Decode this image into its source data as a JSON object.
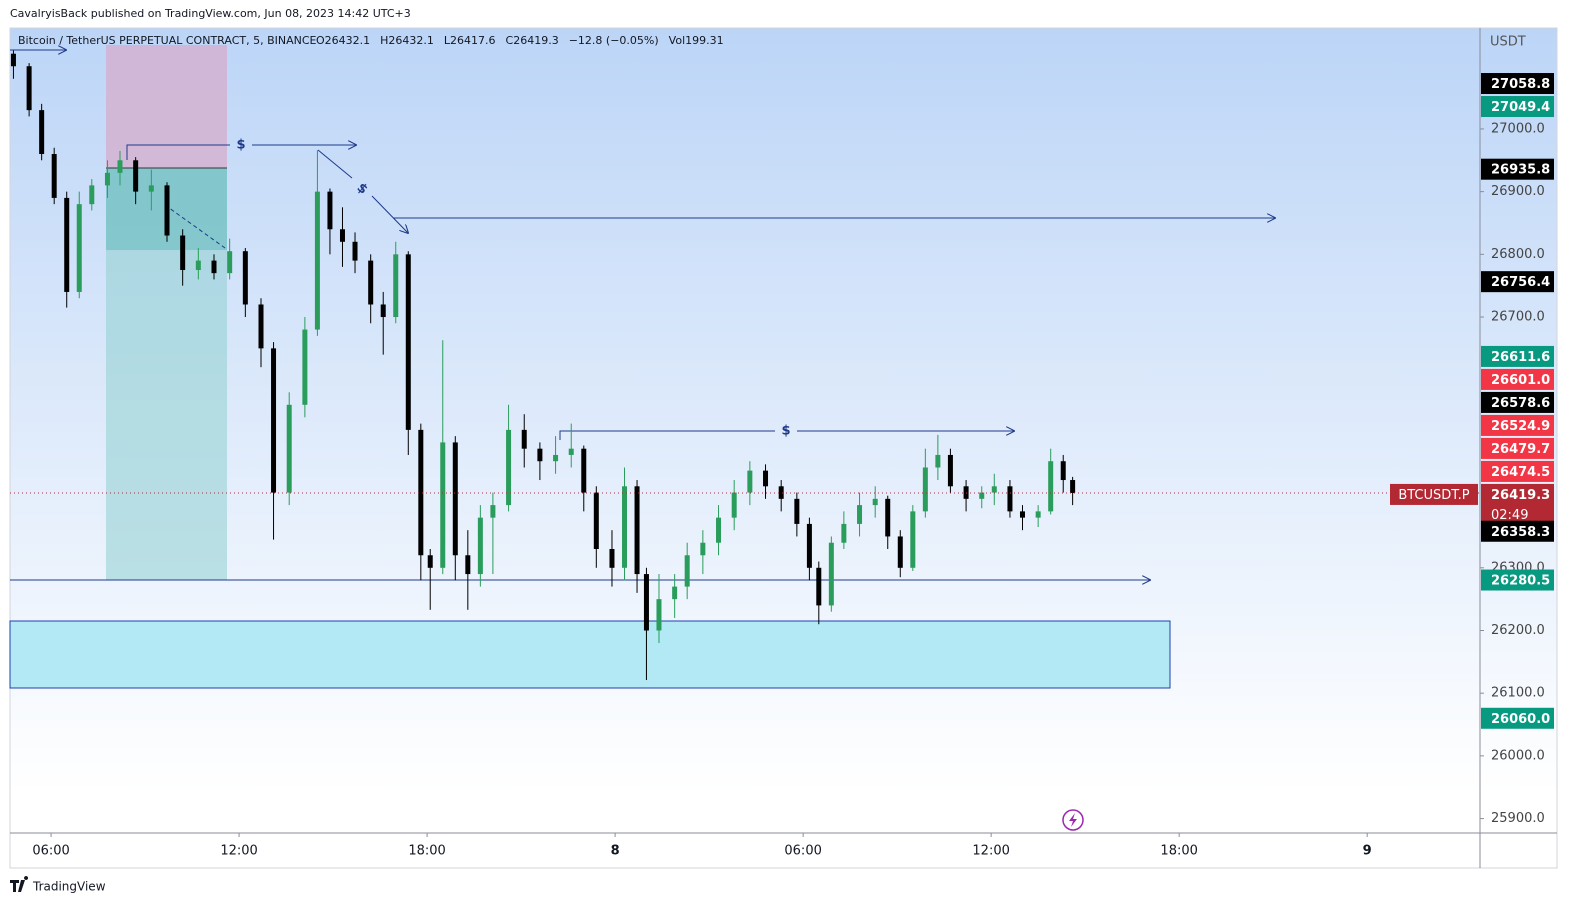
{
  "header": "CavalryisBack published on TradingView.com, Jun 08, 2023 14:42 UTC+3",
  "footer": "TradingView",
  "chart_data": {
    "type": "candlestick",
    "symbol": "Bitcoin / TetherUS PERPETUAL CONTRACT, 5, BINANCE",
    "ohlc": [
      "O26432.1",
      "H26432.1",
      "L26417.6",
      "C26419.3",
      "−12.8 (−0.05%)",
      "Vol199.31"
    ],
    "currency": "USDT",
    "ticker": "BTCUSDT.P",
    "countdown": "02:49",
    "annotations": [
      "$",
      "$",
      "$"
    ],
    "up_color": "#2a9d5c",
    "down_color": "#000000",
    "x": [
      4.8,
      5.3,
      5.7,
      6.1,
      6.5,
      6.9,
      7.3,
      7.8,
      8.2,
      8.7,
      9.2,
      9.7,
      10.2,
      10.7,
      11.2,
      11.7,
      12.2,
      12.7,
      13.1,
      13.6,
      14.1,
      14.5,
      14.9,
      15.3,
      15.7,
      16.2,
      16.6,
      17.0,
      17.4,
      17.8,
      18.1,
      18.5,
      18.9,
      19.3,
      19.7,
      20.1,
      20.6,
      21.1,
      21.6,
      22.1,
      22.6,
      23.0,
      23.4,
      23.9,
      24.3,
      24.7,
      25.0,
      25.4,
      25.9,
      26.3,
      26.8,
      27.3,
      27.8,
      28.3,
      28.8,
      29.3,
      29.8,
      30.2,
      30.5,
      30.9,
      31.3,
      31.8,
      32.3,
      32.7,
      33.1,
      33.5,
      33.9,
      34.3,
      34.7,
      35.2,
      35.7,
      36.1,
      36.6,
      37.0,
      37.5,
      37.9,
      38.3,
      38.6
    ],
    "open": [
      27120,
      27100,
      27030,
      26960,
      26890,
      26740,
      26880,
      26910,
      26930,
      26950,
      26900,
      26910,
      26830,
      26775,
      26790,
      26770,
      26805,
      26720,
      26650,
      26420,
      26560,
      26680,
      26900,
      26840,
      26820,
      26790,
      26720,
      26700,
      26800,
      26520,
      26320,
      26300,
      26500,
      26320,
      26290,
      26380,
      26400,
      26520,
      26490,
      26470,
      26480,
      26490,
      26420,
      26330,
      26300,
      26430,
      26290,
      26200,
      26250,
      26270,
      26320,
      26340,
      26380,
      26420,
      26455,
      26430,
      26410,
      26370,
      26300,
      26240,
      26340,
      26370,
      26400,
      26410,
      26350,
      26300,
      26390,
      26460,
      26480,
      26430,
      26410,
      26420,
      26430,
      26390,
      26380,
      26390,
      26470,
      26440
    ],
    "high": [
      27125,
      27105,
      27040,
      26970,
      26900,
      26900,
      26920,
      26950,
      26965,
      26955,
      26935,
      26915,
      26840,
      26810,
      26800,
      26825,
      26810,
      26730,
      26660,
      26580,
      26700,
      26966,
      26905,
      26875,
      26835,
      26800,
      26740,
      26820,
      26805,
      26530,
      26330,
      26663,
      26510,
      26360,
      26400,
      26420,
      26560,
      26545,
      26500,
      26510,
      26530,
      26495,
      26430,
      26360,
      26460,
      26440,
      26300,
      26290,
      26290,
      26340,
      26360,
      26400,
      26440,
      26470,
      26465,
      26440,
      26420,
      26380,
      26310,
      26350,
      26390,
      26420,
      26430,
      26415,
      26360,
      26400,
      26490,
      26512,
      26490,
      26440,
      26430,
      26450,
      26440,
      26400,
      26400,
      26490,
      26480,
      26445
    ],
    "low": [
      27080,
      27020,
      26950,
      26880,
      26715,
      26730,
      26870,
      26890,
      26910,
      26880,
      26870,
      26820,
      26750,
      26760,
      26760,
      26760,
      26700,
      26620,
      26345,
      26400,
      26540,
      26670,
      26800,
      26780,
      26770,
      26690,
      26640,
      26690,
      26480,
      26280,
      26233,
      26290,
      26280,
      26233,
      26270,
      26290,
      26390,
      26460,
      26440,
      26450,
      26460,
      26390,
      26300,
      26270,
      26280,
      26260,
      26121,
      26180,
      26220,
      26250,
      26290,
      26320,
      26360,
      26400,
      26410,
      26390,
      26350,
      26280,
      26210,
      26230,
      26330,
      26350,
      26380,
      26330,
      26285,
      26295,
      26380,
      26440,
      26420,
      26390,
      26395,
      26400,
      26380,
      26360,
      26365,
      26385,
      26420,
      26400
    ],
    "close": [
      27100,
      27030,
      26960,
      26890,
      26740,
      26880,
      26910,
      26930,
      26950,
      26900,
      26910,
      26830,
      26775,
      26790,
      26770,
      26805,
      26720,
      26650,
      26420,
      26560,
      26680,
      26900,
      26840,
      26820,
      26790,
      26720,
      26700,
      26800,
      26520,
      26320,
      26300,
      26500,
      26320,
      26290,
      26380,
      26400,
      26520,
      26490,
      26470,
      26480,
      26490,
      26420,
      26330,
      26300,
      26430,
      26290,
      26200,
      26250,
      26270,
      26320,
      26340,
      26380,
      26420,
      26455,
      26430,
      26410,
      26370,
      26300,
      26240,
      26340,
      26370,
      26400,
      26410,
      26350,
      26300,
      26390,
      26460,
      26480,
      26430,
      26410,
      26420,
      26430,
      26390,
      26380,
      26390,
      26470,
      26440,
      26419.3
    ],
    "xlim": [
      4.69,
      51.6
    ],
    "xticks": [
      {
        "value": 6,
        "label": "06:00"
      },
      {
        "value": 12,
        "label": "12:00"
      },
      {
        "value": 18,
        "label": "18:00"
      },
      {
        "value": 24,
        "label": "8"
      },
      {
        "value": 30,
        "label": "06:00"
      },
      {
        "value": 36,
        "label": "12:00"
      },
      {
        "value": 42,
        "label": "18:00"
      },
      {
        "value": 48,
        "label": "9"
      }
    ],
    "ylim": [
      25877,
      27161
    ],
    "yticks": [
      {
        "value": 25900,
        "label": "25900.0"
      },
      {
        "value": 26000,
        "label": "26000.0"
      },
      {
        "value": 26100,
        "label": "26100.0"
      },
      {
        "value": 26200,
        "label": "26200.0"
      },
      {
        "value": 26300,
        "label": "26300.0"
      },
      {
        "value": 26700,
        "label": "26700.0"
      },
      {
        "value": 26800,
        "label": "26800.0"
      },
      {
        "value": 26900,
        "label": "26900.0"
      },
      {
        "value": 27000,
        "label": "27000.0"
      }
    ],
    "price_labels": [
      {
        "value": 27058.8,
        "label": "27058.8",
        "color": "#000000"
      },
      {
        "value": 27049.4,
        "label": "27049.4",
        "color": "#089981"
      },
      {
        "value": 26935.8,
        "label": "26935.8",
        "color": "#000000"
      },
      {
        "value": 26756.4,
        "label": "26756.4",
        "color": "#000000"
      },
      {
        "value": 26611.6,
        "label": "26611.6",
        "color": "#089981"
      },
      {
        "value": 26601.0,
        "label": "26601.0",
        "color": "#f23645"
      },
      {
        "value": 26578.6,
        "label": "26578.6",
        "color": "#000000"
      },
      {
        "value": 26524.9,
        "label": "26524.9",
        "color": "#f23645"
      },
      {
        "value": 26479.7,
        "label": "26479.7",
        "color": "#f23645"
      },
      {
        "value": 26474.5,
        "label": "26474.5",
        "color": "#f23645"
      },
      {
        "value": 26419.3,
        "label": "26419.3",
        "color": "#b22833"
      },
      {
        "value": 26358.3,
        "label": "26358.3",
        "color": "#000000"
      },
      {
        "value": 26280.5,
        "label": "26280.5",
        "color": "#089981"
      },
      {
        "value": 26060.0,
        "label": "26060.0",
        "color": "#089981"
      }
    ],
    "current_index": 10
  }
}
